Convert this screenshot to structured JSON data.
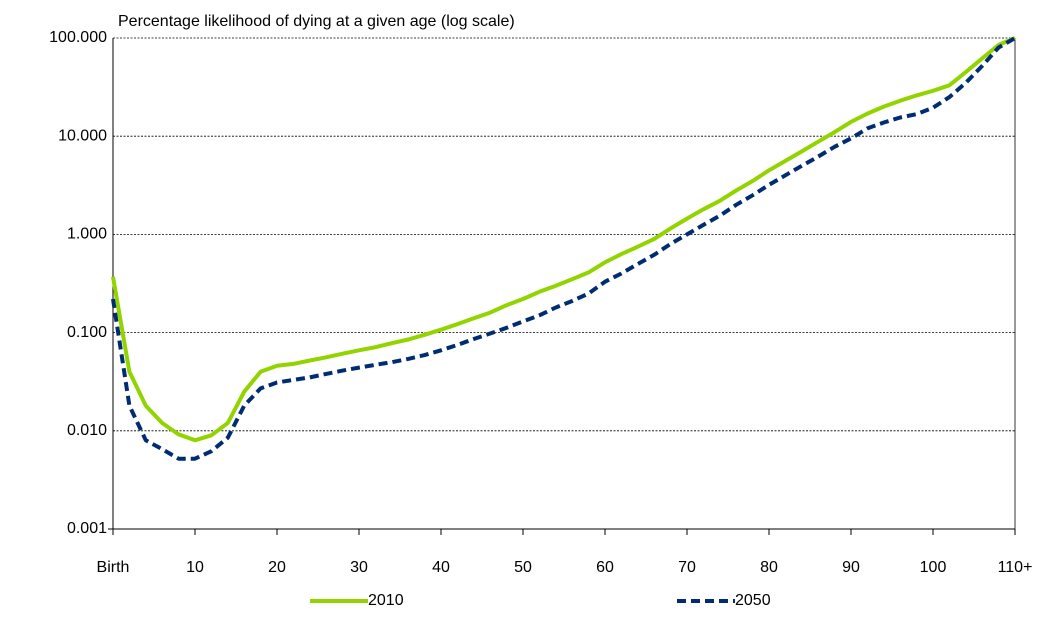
{
  "chart_data": {
    "type": "line",
    "title": "Percentage likelihood of dying at a given age (log scale)",
    "x": [
      0,
      2,
      4,
      6,
      8,
      10,
      12,
      14,
      16,
      18,
      20,
      22,
      24,
      26,
      28,
      30,
      32,
      34,
      36,
      38,
      40,
      42,
      44,
      46,
      48,
      50,
      52,
      54,
      56,
      58,
      60,
      62,
      64,
      66,
      68,
      70,
      72,
      74,
      76,
      78,
      80,
      82,
      84,
      86,
      88,
      90,
      92,
      94,
      96,
      98,
      100,
      102,
      104,
      106,
      108,
      110
    ],
    "series": [
      {
        "name": "2010",
        "color": "#92d400",
        "style": "solid",
        "values": [
          0.37,
          0.04,
          0.018,
          0.012,
          0.0092,
          0.008,
          0.009,
          0.012,
          0.025,
          0.04,
          0.046,
          0.048,
          0.052,
          0.056,
          0.061,
          0.066,
          0.071,
          0.078,
          0.085,
          0.095,
          0.107,
          0.122,
          0.14,
          0.16,
          0.19,
          0.22,
          0.26,
          0.3,
          0.35,
          0.41,
          0.52,
          0.63,
          0.75,
          0.9,
          1.15,
          1.45,
          1.8,
          2.2,
          2.8,
          3.5,
          4.5,
          5.6,
          7,
          8.8,
          11,
          14,
          17,
          20,
          23,
          26,
          29,
          33,
          45,
          62,
          85,
          100
        ]
      },
      {
        "name": "2050",
        "color": "#002d72",
        "style": "dashed",
        "values": [
          0.22,
          0.018,
          0.008,
          0.0065,
          0.0052,
          0.0052,
          0.0062,
          0.0085,
          0.018,
          0.027,
          0.031,
          0.033,
          0.035,
          0.038,
          0.041,
          0.044,
          0.047,
          0.05,
          0.054,
          0.059,
          0.066,
          0.075,
          0.086,
          0.098,
          0.112,
          0.13,
          0.15,
          0.18,
          0.21,
          0.25,
          0.33,
          0.4,
          0.5,
          0.62,
          0.8,
          1.0,
          1.25,
          1.55,
          2.0,
          2.5,
          3.2,
          4.0,
          5.0,
          6.2,
          7.8,
          9.5,
          12,
          13.8,
          15.5,
          16.8,
          19.5,
          25,
          35,
          52,
          80,
          100
        ]
      }
    ],
    "xlim": [
      0,
      110
    ],
    "xticks": [
      {
        "value": 0,
        "label": "Birth"
      },
      10,
      20,
      30,
      40,
      50,
      60,
      70,
      80,
      90,
      100,
      {
        "value": 110,
        "label": "110+"
      }
    ],
    "ylim": [
      0.001,
      100
    ],
    "yticks": [
      {
        "value": 0.001,
        "label": "0.001"
      },
      {
        "value": 0.01,
        "label": "0.010"
      },
      {
        "value": 0.1,
        "label": "0.100"
      },
      {
        "value": 1,
        "label": "1.000"
      },
      {
        "value": 10,
        "label": "10.000"
      },
      {
        "value": 100,
        "label": "100.000"
      }
    ],
    "ylog": true,
    "grid": true
  }
}
